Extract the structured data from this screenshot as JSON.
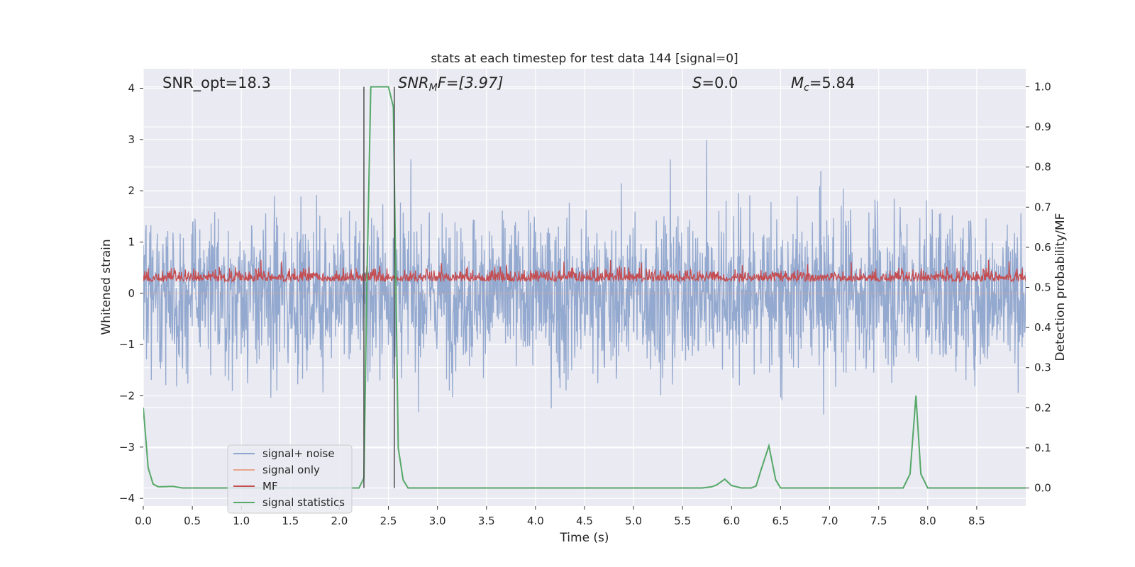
{
  "chart_data": {
    "type": "line",
    "title": "stats at each timestep for test data 144 [signal=0]",
    "xlabel": "Time (s)",
    "ylabel_left": "Whitened strain",
    "ylabel_right": "Detection probability/MF",
    "xlim": [
      0.0,
      9.0
    ],
    "ylim_left": [
      -4.15,
      4.38
    ],
    "ylim_right": [
      -0.045,
      1.045
    ],
    "xticks": [
      "0.0",
      "0.5",
      "1.0",
      "1.5",
      "2.0",
      "2.5",
      "3.0",
      "3.5",
      "4.0",
      "4.5",
      "5.0",
      "5.5",
      "6.0",
      "6.5",
      "7.0",
      "7.5",
      "8.0",
      "8.5"
    ],
    "yticks_left": [
      "4",
      "3",
      "2",
      "1",
      "0",
      "−1",
      "−2",
      "−3",
      "−4"
    ],
    "yticks_right": [
      "1.0",
      "0.9",
      "0.8",
      "0.7",
      "0.6",
      "0.5",
      "0.4",
      "0.3",
      "0.2",
      "0.1",
      "0.0"
    ],
    "grid": true,
    "legend_placement": "lower-left",
    "annotations": {
      "snr_opt": "SNR_opt=18.3",
      "snr_mf_base": "SNR",
      "snr_mf_sub": "M",
      "snr_mf_rest": "F=[3.97]",
      "s_var": "S",
      "s_rest": "=0.0",
      "mc_base": "M",
      "mc_sub": "c",
      "mc_rest": "=5.84"
    },
    "window_markers_x": [
      2.25,
      2.56
    ],
    "series": [
      {
        "name": "signal+ noise",
        "color": "#8fa5cc",
        "axis": "left",
        "kind": "noise",
        "amplitude_range": [
          -3.8,
          4.0
        ]
      },
      {
        "name": "signal only",
        "color": "#e8a58a",
        "axis": "left",
        "kind": "flat",
        "values": [
          0.0
        ]
      },
      {
        "name": "MF",
        "color": "#c44e52",
        "axis": "right",
        "kind": "band",
        "amplitude_range": [
          0.49,
          0.6
        ]
      },
      {
        "name": "signal statistics",
        "color": "#55a868",
        "axis": "right",
        "kind": "line",
        "x": [
          0.0,
          0.05,
          0.1,
          0.15,
          0.2,
          0.3,
          0.4,
          0.5,
          1.0,
          1.5,
          2.0,
          2.1,
          2.2,
          2.25,
          2.28,
          2.32,
          2.4,
          2.5,
          2.55,
          2.6,
          2.65,
          2.7,
          3.0,
          4.0,
          5.0,
          5.7,
          5.8,
          5.85,
          5.93,
          6.0,
          6.1,
          6.2,
          6.25,
          6.3,
          6.38,
          6.45,
          6.5,
          6.6,
          7.0,
          7.5,
          7.75,
          7.82,
          7.88,
          7.93,
          8.0,
          8.5,
          9.0
        ],
        "y": [
          0.2,
          0.05,
          0.01,
          0.003,
          0.003,
          0.004,
          0.0,
          0.0,
          0.0,
          0.0,
          0.0,
          0.0,
          0.0,
          0.025,
          0.5,
          1.0,
          1.0,
          1.0,
          0.95,
          0.1,
          0.02,
          0.0,
          0.0,
          0.0,
          0.0,
          0.0,
          0.003,
          0.008,
          0.022,
          0.006,
          0.0,
          0.0,
          0.005,
          0.045,
          0.105,
          0.02,
          0.0,
          0.0,
          0.0,
          0.0,
          0.0,
          0.035,
          0.23,
          0.035,
          0.0,
          0.0,
          0.0
        ]
      }
    ]
  }
}
